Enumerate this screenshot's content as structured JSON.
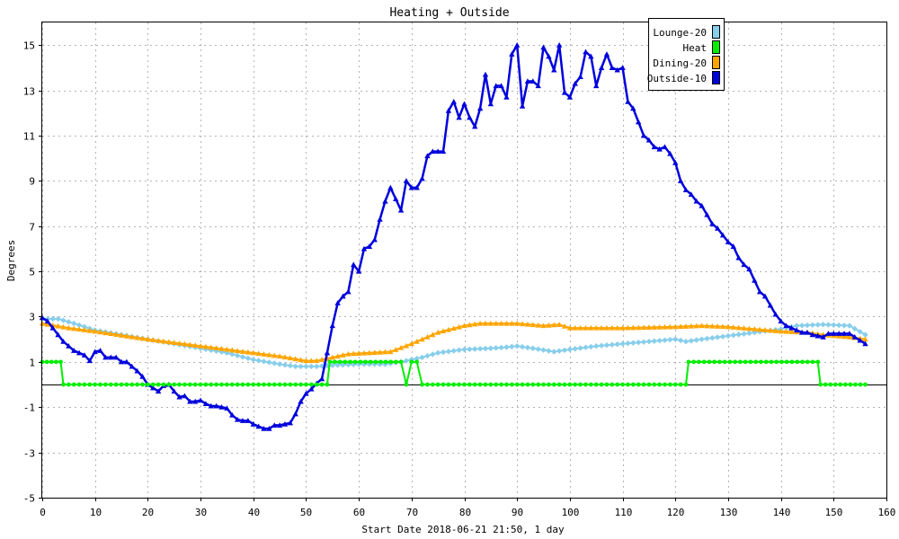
{
  "chart_data": {
    "type": "line",
    "title": "Heating + Outside",
    "xlabel": "Start Date 2018-06-21 21:50, 1 day",
    "ylabel": "Degrees",
    "xlim": [
      0,
      160
    ],
    "ylim": [
      -5,
      16
    ],
    "x_ticks": [
      "0",
      "10",
      "20",
      "30",
      "40",
      "50",
      "60",
      "70",
      "80",
      "90",
      "100",
      "110",
      "120",
      "130",
      "140",
      "150",
      "160"
    ],
    "y_ticks": [
      "-5",
      "-3",
      "-1",
      "1",
      "3",
      "5",
      "7",
      "9",
      "11",
      "13",
      "15"
    ],
    "grid": true,
    "legend_position": "top-right",
    "series": [
      {
        "name": "Lounge-20",
        "color": "#87ceeb",
        "marker": "diamond",
        "points": [
          [
            0,
            2.9
          ],
          [
            3,
            2.9
          ],
          [
            6,
            2.7
          ],
          [
            10,
            2.4
          ],
          [
            15,
            2.2
          ],
          [
            20,
            2.0
          ],
          [
            25,
            1.8
          ],
          [
            30,
            1.6
          ],
          [
            35,
            1.4
          ],
          [
            40,
            1.1
          ],
          [
            45,
            0.9
          ],
          [
            48,
            0.8
          ],
          [
            52,
            0.8
          ],
          [
            55,
            0.85
          ],
          [
            60,
            0.9
          ],
          [
            65,
            0.9
          ],
          [
            68,
            1.0
          ],
          [
            70,
            1.1
          ],
          [
            72,
            1.2
          ],
          [
            75,
            1.4
          ],
          [
            80,
            1.55
          ],
          [
            85,
            1.6
          ],
          [
            88,
            1.65
          ],
          [
            90,
            1.7
          ],
          [
            93,
            1.6
          ],
          [
            97,
            1.45
          ],
          [
            100,
            1.55
          ],
          [
            105,
            1.7
          ],
          [
            110,
            1.8
          ],
          [
            115,
            1.9
          ],
          [
            120,
            2.0
          ],
          [
            122,
            1.9
          ],
          [
            125,
            2.0
          ],
          [
            130,
            2.15
          ],
          [
            135,
            2.3
          ],
          [
            140,
            2.45
          ],
          [
            143,
            2.6
          ],
          [
            148,
            2.65
          ],
          [
            153,
            2.6
          ],
          [
            156,
            2.2
          ]
        ]
      },
      {
        "name": "Heat",
        "color": "#00ee00",
        "marker": "circle",
        "points": [
          [
            0,
            1
          ],
          [
            3.5,
            1
          ],
          [
            4,
            0
          ],
          [
            54,
            0
          ],
          [
            54.5,
            1
          ],
          [
            68,
            1
          ],
          [
            69,
            0
          ],
          [
            70,
            1
          ],
          [
            71,
            1
          ],
          [
            72,
            0
          ],
          [
            122,
            0
          ],
          [
            122.5,
            1
          ],
          [
            147,
            1
          ],
          [
            147.5,
            0
          ],
          [
            156,
            0
          ]
        ]
      },
      {
        "name": "Dining-20",
        "color": "#ffa500",
        "marker": "triangle",
        "points": [
          [
            0,
            2.7
          ],
          [
            5,
            2.5
          ],
          [
            10,
            2.35
          ],
          [
            20,
            2.0
          ],
          [
            30,
            1.7
          ],
          [
            40,
            1.4
          ],
          [
            45,
            1.25
          ],
          [
            50,
            1.05
          ],
          [
            52,
            1.05
          ],
          [
            55,
            1.2
          ],
          [
            58,
            1.35
          ],
          [
            62,
            1.4
          ],
          [
            66,
            1.45
          ],
          [
            70,
            1.8
          ],
          [
            75,
            2.3
          ],
          [
            80,
            2.6
          ],
          [
            83,
            2.7
          ],
          [
            90,
            2.7
          ],
          [
            95,
            2.6
          ],
          [
            98,
            2.65
          ],
          [
            100,
            2.5
          ],
          [
            110,
            2.5
          ],
          [
            120,
            2.55
          ],
          [
            125,
            2.6
          ],
          [
            130,
            2.55
          ],
          [
            135,
            2.45
          ],
          [
            140,
            2.35
          ],
          [
            145,
            2.3
          ],
          [
            148,
            2.2
          ],
          [
            153,
            2.1
          ],
          [
            156,
            2.0
          ]
        ]
      },
      {
        "name": "Outside-10",
        "color": "#0000dd",
        "marker": "triangle",
        "points": [
          [
            0,
            2.95
          ],
          [
            1,
            2.8
          ],
          [
            2,
            2.5
          ],
          [
            3,
            2.2
          ],
          [
            4,
            1.9
          ],
          [
            5,
            1.7
          ],
          [
            6,
            1.5
          ],
          [
            7,
            1.4
          ],
          [
            8,
            1.3
          ],
          [
            9,
            1.05
          ],
          [
            10,
            1.45
          ],
          [
            11,
            1.5
          ],
          [
            12,
            1.2
          ],
          [
            13,
            1.2
          ],
          [
            14,
            1.2
          ],
          [
            15,
            1.0
          ],
          [
            16,
            1.0
          ],
          [
            17,
            0.8
          ],
          [
            18,
            0.6
          ],
          [
            19,
            0.35
          ],
          [
            20,
            0.0
          ],
          [
            21,
            -0.15
          ],
          [
            22,
            -0.3
          ],
          [
            23,
            -0.05
          ],
          [
            24,
            0.0
          ],
          [
            25,
            -0.3
          ],
          [
            26,
            -0.55
          ],
          [
            27,
            -0.5
          ],
          [
            28,
            -0.75
          ],
          [
            29,
            -0.75
          ],
          [
            30,
            -0.7
          ],
          [
            31,
            -0.85
          ],
          [
            32,
            -0.95
          ],
          [
            33,
            -0.95
          ],
          [
            34,
            -1.0
          ],
          [
            35,
            -1.05
          ],
          [
            36,
            -1.35
          ],
          [
            37,
            -1.55
          ],
          [
            38,
            -1.6
          ],
          [
            39,
            -1.6
          ],
          [
            40,
            -1.75
          ],
          [
            41,
            -1.85
          ],
          [
            42,
            -1.95
          ],
          [
            43,
            -1.95
          ],
          [
            44,
            -1.8
          ],
          [
            45,
            -1.8
          ],
          [
            46,
            -1.75
          ],
          [
            47,
            -1.7
          ],
          [
            48,
            -1.3
          ],
          [
            49,
            -0.75
          ],
          [
            50,
            -0.4
          ],
          [
            51,
            -0.2
          ],
          [
            52,
            0.05
          ],
          [
            53,
            0.25
          ],
          [
            54,
            1.4
          ],
          [
            55,
            2.6
          ],
          [
            56,
            3.6
          ],
          [
            57,
            3.9
          ],
          [
            58,
            4.1
          ],
          [
            59,
            5.3
          ],
          [
            60,
            5.0
          ],
          [
            61,
            6.0
          ],
          [
            62,
            6.1
          ],
          [
            63,
            6.4
          ],
          [
            64,
            7.3
          ],
          [
            65,
            8.1
          ],
          [
            66,
            8.7
          ],
          [
            67,
            8.2
          ],
          [
            68,
            7.7
          ],
          [
            69,
            9.0
          ],
          [
            70,
            8.7
          ],
          [
            71,
            8.7
          ],
          [
            72,
            9.1
          ],
          [
            73,
            10.1
          ],
          [
            74,
            10.3
          ],
          [
            75,
            10.3
          ],
          [
            76,
            10.3
          ],
          [
            77,
            12.1
          ],
          [
            78,
            12.5
          ],
          [
            79,
            11.8
          ],
          [
            80,
            12.4
          ],
          [
            81,
            11.8
          ],
          [
            82,
            11.4
          ],
          [
            83,
            12.2
          ],
          [
            84,
            13.7
          ],
          [
            85,
            12.4
          ],
          [
            86,
            13.2
          ],
          [
            87,
            13.2
          ],
          [
            88,
            12.7
          ],
          [
            89,
            14.6
          ],
          [
            90,
            15.0
          ],
          [
            91,
            12.3
          ],
          [
            92,
            13.4
          ],
          [
            93,
            13.4
          ],
          [
            94,
            13.2
          ],
          [
            95,
            14.9
          ],
          [
            96,
            14.5
          ],
          [
            97,
            13.9
          ],
          [
            98,
            15.0
          ],
          [
            99,
            12.9
          ],
          [
            100,
            12.7
          ],
          [
            101,
            13.3
          ],
          [
            102,
            13.6
          ],
          [
            103,
            14.7
          ],
          [
            104,
            14.5
          ],
          [
            105,
            13.2
          ],
          [
            106,
            14.0
          ],
          [
            107,
            14.6
          ],
          [
            108,
            14.0
          ],
          [
            109,
            13.9
          ],
          [
            110,
            14.0
          ],
          [
            111,
            12.5
          ],
          [
            112,
            12.2
          ],
          [
            113,
            11.6
          ],
          [
            114,
            11.0
          ],
          [
            115,
            10.8
          ],
          [
            116,
            10.5
          ],
          [
            117,
            10.4
          ],
          [
            118,
            10.5
          ],
          [
            119,
            10.2
          ],
          [
            120,
            9.8
          ],
          [
            121,
            9.0
          ],
          [
            122,
            8.6
          ],
          [
            123,
            8.4
          ],
          [
            124,
            8.1
          ],
          [
            125,
            7.9
          ],
          [
            126,
            7.5
          ],
          [
            127,
            7.1
          ],
          [
            128,
            6.9
          ],
          [
            129,
            6.6
          ],
          [
            130,
            6.3
          ],
          [
            131,
            6.1
          ],
          [
            132,
            5.6
          ],
          [
            133,
            5.3
          ],
          [
            134,
            5.1
          ],
          [
            135,
            4.6
          ],
          [
            136,
            4.1
          ],
          [
            137,
            3.9
          ],
          [
            138,
            3.5
          ],
          [
            139,
            3.1
          ],
          [
            140,
            2.8
          ],
          [
            141,
            2.6
          ],
          [
            142,
            2.5
          ],
          [
            143,
            2.4
          ],
          [
            144,
            2.3
          ],
          [
            145,
            2.3
          ],
          [
            146,
            2.2
          ],
          [
            147,
            2.15
          ],
          [
            148,
            2.1
          ],
          [
            149,
            2.25
          ],
          [
            150,
            2.25
          ],
          [
            151,
            2.25
          ],
          [
            152,
            2.25
          ],
          [
            153,
            2.25
          ],
          [
            154,
            2.1
          ],
          [
            155,
            1.95
          ],
          [
            156,
            1.8
          ]
        ]
      }
    ]
  }
}
